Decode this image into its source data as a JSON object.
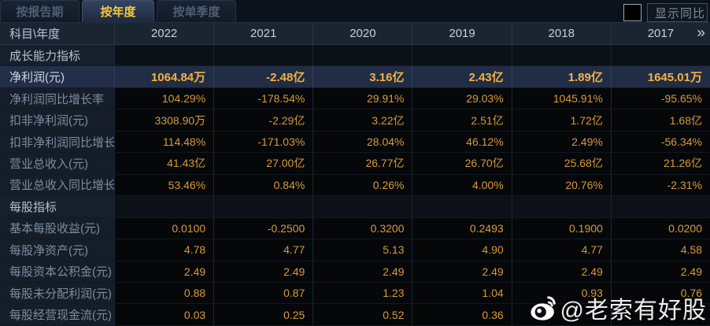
{
  "tabs": [
    {
      "label": "按报告期",
      "active": false
    },
    {
      "label": "按年度",
      "active": true
    },
    {
      "label": "按单季度",
      "active": false
    }
  ],
  "toolbar": {
    "show_yoy_label": "显示同比",
    "checkbox_checked": false
  },
  "table": {
    "corner_label": "科目\\年度",
    "years": [
      "2022",
      "2021",
      "2020",
      "2019",
      "2018",
      "2017"
    ],
    "more_years_glyph": "»",
    "rows": [
      {
        "type": "section",
        "label": "成长能力指标",
        "values": [
          "",
          "",
          "",
          "",
          "",
          ""
        ]
      },
      {
        "type": "highlight",
        "label": "净利润(元)",
        "values": [
          "1064.84万",
          "-2.48亿",
          "3.16亿",
          "2.43亿",
          "1.89亿",
          "1645.01万"
        ]
      },
      {
        "type": "data",
        "label": "净利润同比增长率",
        "values": [
          "104.29%",
          "-178.54%",
          "29.91%",
          "29.03%",
          "1045.91%",
          "-95.65%"
        ]
      },
      {
        "type": "data",
        "label": "扣非净利润(元)",
        "values": [
          "3308.90万",
          "-2.29亿",
          "3.22亿",
          "2.51亿",
          "1.72亿",
          "1.68亿"
        ]
      },
      {
        "type": "data",
        "label": "扣非净利润同比增长率",
        "values": [
          "114.48%",
          "-171.03%",
          "28.04%",
          "46.12%",
          "2.49%",
          "-56.34%"
        ]
      },
      {
        "type": "data",
        "label": "营业总收入(元)",
        "values": [
          "41.43亿",
          "27.00亿",
          "26.77亿",
          "26.70亿",
          "25.68亿",
          "21.26亿"
        ]
      },
      {
        "type": "data",
        "label": "营业总收入同比增长率",
        "values": [
          "53.46%",
          "0.84%",
          "0.26%",
          "4.00%",
          "20.76%",
          "-2.31%"
        ]
      },
      {
        "type": "section",
        "label": "每股指标",
        "values": [
          "",
          "",
          "",
          "",
          "",
          ""
        ]
      },
      {
        "type": "data",
        "label": "基本每股收益(元)",
        "values": [
          "0.0100",
          "-0.2500",
          "0.3200",
          "0.2493",
          "0.1900",
          "0.0200"
        ]
      },
      {
        "type": "data",
        "label": "每股净资产(元)",
        "values": [
          "4.78",
          "4.77",
          "5.13",
          "4.90",
          "4.77",
          "4.58"
        ]
      },
      {
        "type": "data",
        "label": "每股资本公积金(元)",
        "values": [
          "2.49",
          "2.49",
          "2.49",
          "2.49",
          "2.49",
          "2.49"
        ]
      },
      {
        "type": "data",
        "label": "每股未分配利润(元)",
        "values": [
          "0.88",
          "0.87",
          "1.23",
          "1.04",
          "0.93",
          "0.76"
        ]
      },
      {
        "type": "data",
        "label": "每股经营现金流(元)",
        "values": [
          "0.03",
          "0.25",
          "0.52",
          "0.36",
          "",
          ""
        ]
      }
    ]
  },
  "watermark": {
    "text": "@老索有好股"
  },
  "colors": {
    "accent_gold": "#f7c83d",
    "value_orange": "#d89a39",
    "highlight_row_bg": "#212d45",
    "header_bg": "#1b2431",
    "label_col_bg": "#151d28",
    "data_cell_bg": "#050709"
  }
}
